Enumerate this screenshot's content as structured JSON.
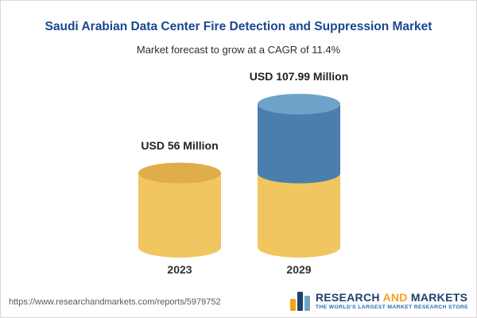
{
  "header": {
    "title": "Saudi Arabian Data Center Fire Detection and Suppression Market",
    "subtitle": "Market forecast to grow at a CAGR of 11.4%"
  },
  "chart_data": {
    "type": "bar",
    "style": "3d-cylinder-stacked",
    "title": "Saudi Arabian Data Center Fire Detection and Suppression Market",
    "subtitle": "Market forecast to grow at a CAGR of 11.4%",
    "cagr_percent": 11.4,
    "unit": "USD Million",
    "categories": [
      "2023",
      "2029"
    ],
    "values": [
      56,
      107.99
    ],
    "value_labels": [
      "USD 56 Million",
      "USD 107.99 Million"
    ],
    "notes": "2029 cylinder is stacked: gold base equals the 2023 value, blue segment on top shows forecast growth",
    "legend": "none",
    "grid": "off",
    "colors": {
      "base_segment": "#F1C660",
      "base_segment_top": "#DFAE4B",
      "growth_segment": "#4B7EAD",
      "growth_segment_top": "#6FA3C9"
    }
  },
  "footer": {
    "source_url": "https://www.researchandmarkets.com/reports/5979752",
    "logo": {
      "research": "RESEARCH",
      "and": "AND",
      "markets": "MARKETS",
      "tagline": "THE WORLD'S LARGEST MARKET RESEARCH STORE"
    }
  },
  "colors": {
    "title_blue": "#1A478F",
    "text_dark": "#2E2E2E",
    "gold": "#F1C660",
    "gold_top": "#DFAE4B",
    "blue": "#4B7EAD",
    "blue_top": "#6FA3C9",
    "logo_navy": "#21406B",
    "logo_orange": "#F7A21A",
    "tagline_blue": "#2B6CB0",
    "url_gray": "#5A5A5A"
  }
}
